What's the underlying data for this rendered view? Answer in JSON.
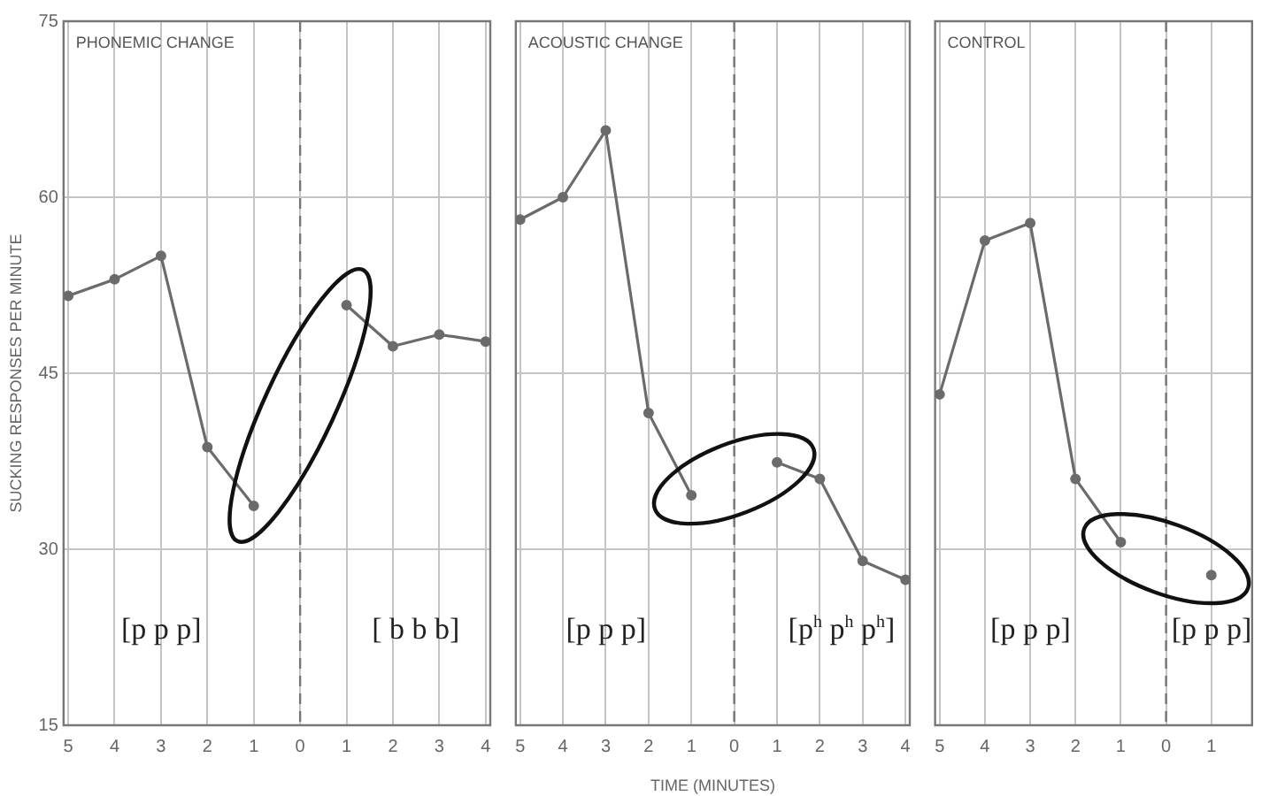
{
  "chart_data": [
    {
      "type": "line",
      "title": "PHONEMIC CHANGE",
      "ylabel": "SUCKING RESPONSES PER MINUTE",
      "x": [
        -5,
        -4,
        -3,
        -2,
        -1,
        0,
        1,
        2,
        3,
        4
      ],
      "series": [
        {
          "color": "#6b6b6b",
          "values": [
            51.6,
            53.0,
            55.0,
            38.7,
            33.7,
            null,
            50.8,
            47.3,
            48.3,
            47.7
          ]
        }
      ],
      "xlim": [
        -5.1,
        4.1
      ],
      "xticks": [
        {
          "value": -5,
          "label": "5"
        },
        {
          "value": -4,
          "label": "4"
        },
        {
          "value": -3,
          "label": "3"
        },
        {
          "value": -2,
          "label": "2"
        },
        {
          "value": -1,
          "label": "1"
        },
        0,
        1,
        2,
        3,
        4
      ],
      "ylim": [
        15,
        75
      ],
      "yticks": [
        15,
        30,
        45,
        60,
        75
      ],
      "grid": true,
      "marker": "circle",
      "ref_lines": [
        {
          "axis": "x",
          "value": 0,
          "line_style": "dashed"
        }
      ],
      "annotations": [
        "[p p p]",
        "[ b b b]"
      ]
    },
    {
      "type": "line",
      "title": "ACOUSTIC CHANGE",
      "xlabel": "TIME (MINUTES)",
      "x": [
        -5,
        -4,
        -3,
        -2,
        -1,
        0,
        1,
        2,
        3,
        4
      ],
      "series": [
        {
          "color": "#6b6b6b",
          "values": [
            58.1,
            60.0,
            65.7,
            41.6,
            34.6,
            null,
            37.4,
            36.0,
            29.0,
            27.4
          ]
        }
      ],
      "xlim": [
        -5.1,
        4.1
      ],
      "xticks": [
        {
          "value": -5,
          "label": "5"
        },
        {
          "value": -4,
          "label": "4"
        },
        {
          "value": -3,
          "label": "3"
        },
        {
          "value": -2,
          "label": "2"
        },
        {
          "value": -1,
          "label": "1"
        },
        0,
        1,
        2,
        3,
        4
      ],
      "ylim": [
        15,
        75
      ],
      "yticks": [
        15,
        30,
        45,
        60,
        75
      ],
      "grid": true,
      "marker": "circle",
      "tick_labels": "x",
      "ref_lines": [
        {
          "axis": "x",
          "value": 0,
          "line_style": "dashed"
        }
      ],
      "annotations": [
        "[p p p]",
        "[p$^{h}$ p$^{h}$ p$^{h}$]"
      ]
    },
    {
      "type": "line",
      "title": "CONTROL",
      "x": [
        -5,
        -4,
        -3,
        -2,
        -1,
        0,
        1
      ],
      "series": [
        {
          "color": "#6b6b6b",
          "values": [
            43.2,
            56.3,
            57.8,
            36.0,
            30.6,
            null,
            27.8
          ]
        }
      ],
      "xlim": [
        -5.1,
        1.9
      ],
      "xticks": [
        {
          "value": -5,
          "label": "5"
        },
        {
          "value": -4,
          "label": "4"
        },
        {
          "value": -3,
          "label": "3"
        },
        {
          "value": -2,
          "label": "2"
        },
        {
          "value": -1,
          "label": "1"
        },
        0,
        1
      ],
      "ylim": [
        15,
        75
      ],
      "yticks": [
        15,
        30,
        45,
        60,
        75
      ],
      "grid": true,
      "marker": "circle",
      "tick_labels": "x",
      "ref_lines": [
        {
          "axis": "x",
          "value": 0,
          "line_style": "dashed"
        }
      ],
      "annotations": [
        "[p p p]",
        "[p p p]"
      ]
    }
  ]
}
